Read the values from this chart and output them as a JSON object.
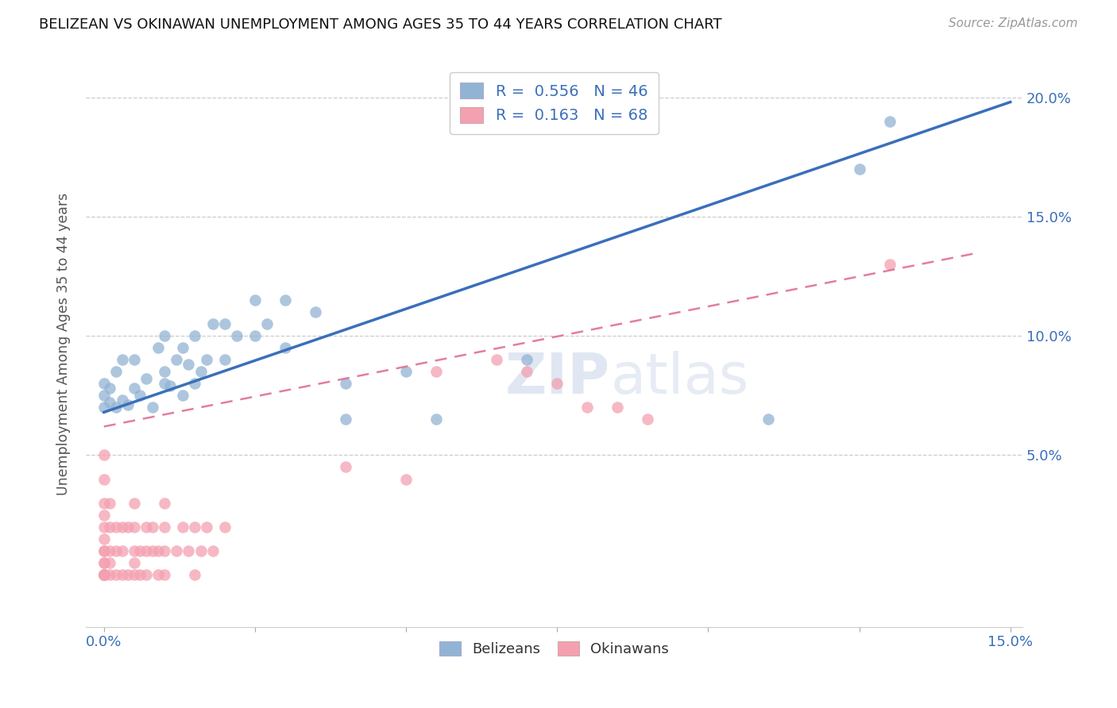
{
  "title": "BELIZEAN VS OKINAWAN UNEMPLOYMENT AMONG AGES 35 TO 44 YEARS CORRELATION CHART",
  "source": "Source: ZipAtlas.com",
  "ylabel": "Unemployment Among Ages 35 to 44 years",
  "belizean_color": "#92b4d4",
  "okinawan_color": "#f4a0b0",
  "belizean_line_color": "#3a6fba",
  "okinawan_line_color": "#e07090",
  "bel_line_x": [
    0.0,
    0.15
  ],
  "bel_line_y": [
    0.068,
    0.198
  ],
  "ok_line_x": [
    0.0,
    0.145
  ],
  "ok_line_y": [
    0.062,
    0.135
  ],
  "watermark_zip": "ZIP",
  "watermark_atlas": "atlas",
  "background_color": "#ffffff",
  "bel_x": [
    0.0,
    0.0,
    0.0,
    0.001,
    0.001,
    0.002,
    0.002,
    0.003,
    0.003,
    0.004,
    0.005,
    0.005,
    0.006,
    0.007,
    0.008,
    0.009,
    0.01,
    0.01,
    0.01,
    0.011,
    0.012,
    0.013,
    0.013,
    0.014,
    0.015,
    0.015,
    0.016,
    0.017,
    0.018,
    0.02,
    0.02,
    0.022,
    0.025,
    0.025,
    0.027,
    0.03,
    0.03,
    0.035,
    0.04,
    0.04,
    0.05,
    0.055,
    0.07,
    0.11,
    0.125,
    0.13
  ],
  "bel_y": [
    0.07,
    0.075,
    0.08,
    0.072,
    0.078,
    0.07,
    0.085,
    0.073,
    0.09,
    0.071,
    0.078,
    0.09,
    0.075,
    0.082,
    0.07,
    0.095,
    0.08,
    0.085,
    0.1,
    0.079,
    0.09,
    0.075,
    0.095,
    0.088,
    0.08,
    0.1,
    0.085,
    0.09,
    0.105,
    0.09,
    0.105,
    0.1,
    0.1,
    0.115,
    0.105,
    0.095,
    0.115,
    0.11,
    0.08,
    0.065,
    0.085,
    0.065,
    0.09,
    0.065,
    0.17,
    0.19
  ],
  "ok_x": [
    0.0,
    0.0,
    0.0,
    0.0,
    0.0,
    0.0,
    0.0,
    0.0,
    0.0,
    0.0,
    0.0,
    0.0,
    0.0,
    0.0,
    0.0,
    0.0,
    0.0,
    0.0,
    0.001,
    0.001,
    0.001,
    0.001,
    0.001,
    0.002,
    0.002,
    0.002,
    0.003,
    0.003,
    0.003,
    0.004,
    0.004,
    0.005,
    0.005,
    0.005,
    0.005,
    0.005,
    0.006,
    0.006,
    0.007,
    0.007,
    0.007,
    0.008,
    0.008,
    0.009,
    0.009,
    0.01,
    0.01,
    0.01,
    0.01,
    0.012,
    0.013,
    0.014,
    0.015,
    0.015,
    0.016,
    0.017,
    0.018,
    0.02,
    0.04,
    0.05,
    0.055,
    0.065,
    0.07,
    0.075,
    0.08,
    0.085,
    0.09,
    0.13
  ],
  "ok_y": [
    0.0,
    0.0,
    0.0,
    0.0,
    0.0,
    0.0,
    0.0,
    0.0,
    0.005,
    0.005,
    0.01,
    0.01,
    0.015,
    0.02,
    0.025,
    0.03,
    0.04,
    0.05,
    0.0,
    0.005,
    0.01,
    0.02,
    0.03,
    0.0,
    0.01,
    0.02,
    0.0,
    0.01,
    0.02,
    0.0,
    0.02,
    0.0,
    0.005,
    0.01,
    0.02,
    0.03,
    0.0,
    0.01,
    0.0,
    0.01,
    0.02,
    0.01,
    0.02,
    0.0,
    0.01,
    0.0,
    0.01,
    0.02,
    0.03,
    0.01,
    0.02,
    0.01,
    0.0,
    0.02,
    0.01,
    0.02,
    0.01,
    0.02,
    0.045,
    0.04,
    0.085,
    0.09,
    0.085,
    0.08,
    0.07,
    0.07,
    0.065,
    0.13
  ],
  "xlim": [
    -0.003,
    0.152
  ],
  "ylim": [
    -0.022,
    0.215
  ],
  "x_tick_pos": [
    0.0,
    0.025,
    0.05,
    0.075,
    0.1,
    0.125,
    0.15
  ],
  "x_tick_labels": [
    "0.0%",
    "",
    "",
    "",
    "",
    "",
    "15.0%"
  ],
  "y_tick_pos": [
    0.0,
    0.05,
    0.1,
    0.15,
    0.2
  ],
  "y_tick_labels_right": [
    "",
    "5.0%",
    "10.0%",
    "15.0%",
    "20.0%"
  ]
}
